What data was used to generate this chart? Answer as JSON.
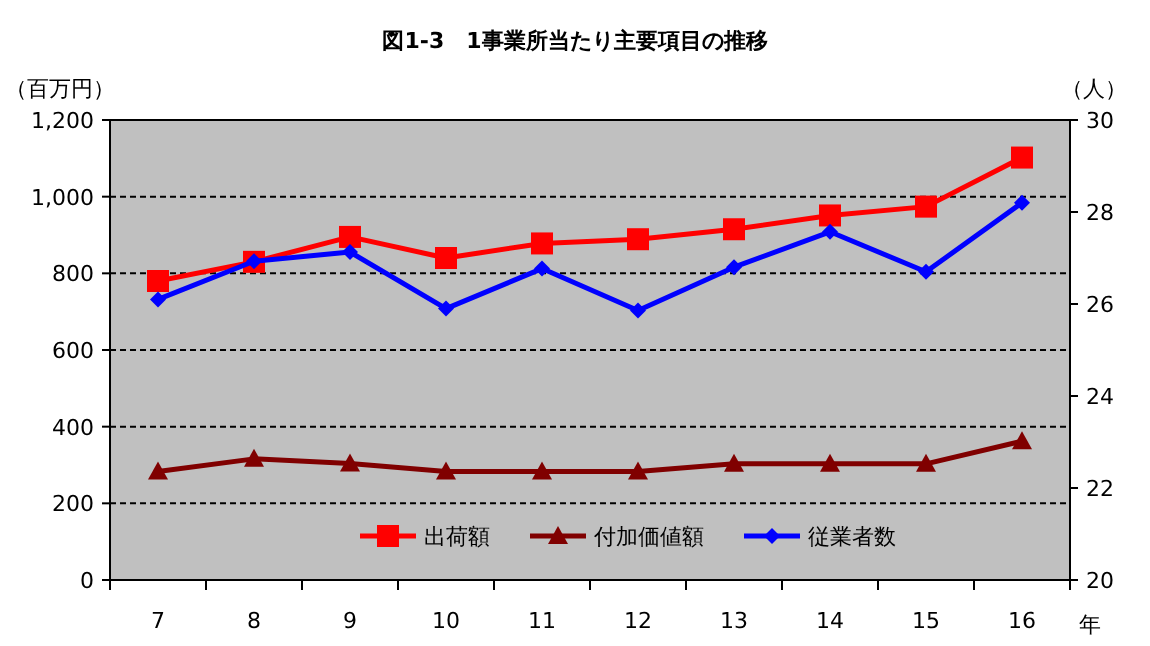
{
  "chart_data": {
    "type": "line",
    "title": "図1-3　1事業所当たり主要項目の推移",
    "ylabel": "（百万円）",
    "y2label": "（人）",
    "xlabel": "年",
    "categories": [
      "7",
      "8",
      "9",
      "10",
      "11",
      "12",
      "13",
      "14",
      "15",
      "16"
    ],
    "series": [
      {
        "name": "出荷額",
        "color": "#ff0000",
        "marker": "square",
        "values": [
          780,
          830,
          895,
          840,
          878,
          889,
          915,
          951,
          974,
          1102
        ]
      },
      {
        "name": "付加価値額",
        "color": "#800000",
        "marker": "triangle",
        "values": [
          283,
          316,
          304,
          283,
          283,
          283,
          303,
          303,
          303,
          362
        ]
      },
      {
        "name": "従業者数",
        "color": "#0000ff",
        "marker": "diamond",
        "axis": "y2",
        "values": [
          26.1,
          26.93,
          27.13,
          25.9,
          26.77,
          25.86,
          26.8,
          27.57,
          26.7,
          28.2
        ]
      }
    ],
    "ylim": [
      0,
      1200
    ],
    "yticks": [
      0,
      200,
      400,
      600,
      {
        "value": 800,
        "label": "800"
      },
      {
        "value": 1000,
        "label": "1,000"
      },
      {
        "value": 1200,
        "label": "1,200"
      }
    ],
    "y2lim": [
      20,
      30
    ],
    "y2ticks": [
      20,
      22,
      24,
      26,
      28,
      30
    ],
    "grid": "y",
    "legend": "bottom"
  }
}
